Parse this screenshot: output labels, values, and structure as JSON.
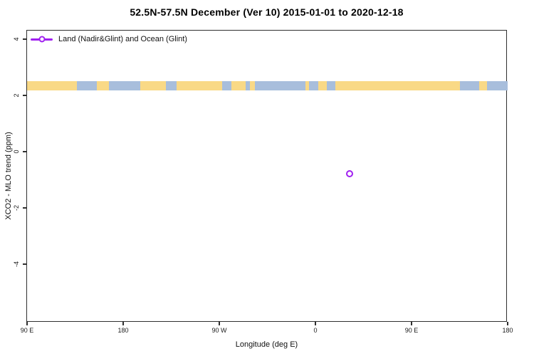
{
  "chart": {
    "title": "52.5N-57.5N December (Ver 10)   2015-01-01 to 2020-12-18",
    "xlabel": "Longitude (deg E)",
    "ylabel": "XCO2 - MLO trend (ppm)",
    "legend_label": "Land (Nadir&Glint) and Ocean (Glint)"
  },
  "chart_data": {
    "type": "scatter",
    "title": "52.5N-57.5N December (Ver 10)   2015-01-01 to 2020-12-18",
    "xlabel": "Longitude (deg E)",
    "ylabel": "XCO2 - MLO trend (ppm)",
    "x_axis_range_deg_e": [
      90,
      540
    ],
    "y_axis_range_ppm": [
      -6.1,
      4.3
    ],
    "grid": false,
    "x_ticks": [
      {
        "label": "90 E",
        "deg": 90
      },
      {
        "label": "180",
        "deg": 180
      },
      {
        "label": "90 W",
        "deg": 270
      },
      {
        "label": "0",
        "deg": 360
      },
      {
        "label": "90 E",
        "deg": 450
      },
      {
        "label": "180",
        "deg": 540
      }
    ],
    "y_ticks": [
      {
        "label": "-4",
        "value": -4
      },
      {
        "label": "-2",
        "value": -2
      },
      {
        "label": "0",
        "value": 0
      },
      {
        "label": "2",
        "value": 2
      },
      {
        "label": "4",
        "value": 4
      }
    ],
    "legend": [
      {
        "label": "Land (Nadir&Glint) and Ocean (Glint)",
        "color": "#A020F0",
        "marker": "open-circle",
        "position": "top-left"
      }
    ],
    "points": [
      {
        "lon_deg_e": 32,
        "x_axis_deg": 392,
        "value_ppm": -0.78,
        "series": "Land (Nadir&Glint) and Ocean (Glint)"
      }
    ],
    "surface_type_band": {
      "description": "land/ocean strip along 52.5N-57.5N drawn at y ~ 2.2 to 2.5 ppm",
      "value_top_ppm": 2.51,
      "value_bottom_ppm": 2.18,
      "land_color": "#F9D986",
      "ocean_color": "#A8BEDC",
      "segments": [
        {
          "from_deg": 90.0,
          "to_deg": 136.8,
          "type": "land"
        },
        {
          "from_deg": 136.8,
          "to_deg": 155.3,
          "type": "ocean"
        },
        {
          "from_deg": 155.3,
          "to_deg": 166.5,
          "type": "land"
        },
        {
          "from_deg": 166.5,
          "to_deg": 196.2,
          "type": "ocean"
        },
        {
          "from_deg": 196.2,
          "to_deg": 220.1,
          "type": "land"
        },
        {
          "from_deg": 220.1,
          "to_deg": 230.0,
          "type": "ocean"
        },
        {
          "from_deg": 230.0,
          "to_deg": 272.7,
          "type": "land"
        },
        {
          "from_deg": 272.7,
          "to_deg": 281.3,
          "type": "ocean"
        },
        {
          "from_deg": 281.3,
          "to_deg": 294.8,
          "type": "land"
        },
        {
          "from_deg": 294.8,
          "to_deg": 298.8,
          "type": "ocean"
        },
        {
          "from_deg": 298.8,
          "to_deg": 303.3,
          "type": "land"
        },
        {
          "from_deg": 303.3,
          "to_deg": 350.6,
          "type": "ocean"
        },
        {
          "from_deg": 350.6,
          "to_deg": 354.2,
          "type": "land"
        },
        {
          "from_deg": 354.2,
          "to_deg": 362.7,
          "type": "ocean"
        },
        {
          "from_deg": 362.7,
          "to_deg": 370.8,
          "type": "land"
        },
        {
          "from_deg": 370.8,
          "to_deg": 378.5,
          "type": "ocean"
        },
        {
          "from_deg": 378.5,
          "to_deg": 495.5,
          "type": "land"
        },
        {
          "from_deg": 495.5,
          "to_deg": 513.5,
          "type": "ocean"
        },
        {
          "from_deg": 513.5,
          "to_deg": 520.7,
          "type": "land"
        },
        {
          "from_deg": 520.7,
          "to_deg": 540.0,
          "type": "ocean"
        }
      ]
    }
  }
}
